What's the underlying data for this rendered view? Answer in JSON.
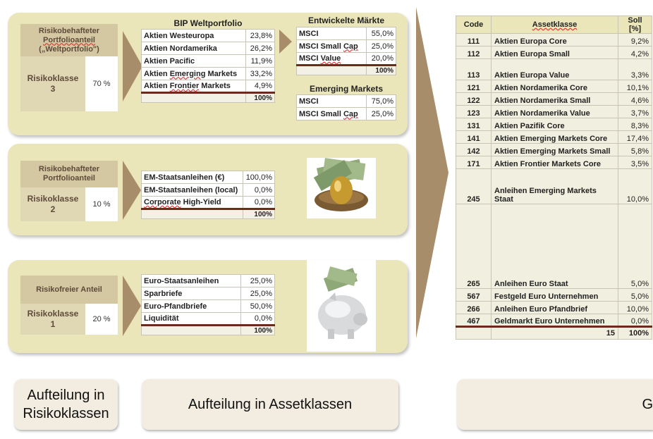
{
  "panel1": {
    "rk_head": [
      "Risikobehafteter",
      "Portfolioanteil",
      "(„Weltportfolio\")"
    ],
    "rk_label": [
      "Risikoklasse",
      "3"
    ],
    "rk_pct": "70 %",
    "bip_title": "BIP Weltportfolio",
    "bip_rows": [
      {
        "label": "Aktien Westeuropa",
        "value": "23,8%"
      },
      {
        "label": "Aktien Nordamerika",
        "value": "26,2%"
      },
      {
        "label": "Aktien Pacific",
        "value": "11,9%"
      },
      {
        "label": "Aktien Emerging Markets",
        "value": "33,2%"
      },
      {
        "label": "Aktien Frontier Markets",
        "value": "4,9%"
      }
    ],
    "bip_total": "100%",
    "em_title": "Entwickelte Märkte",
    "em_rows": [
      {
        "label": "MSCI",
        "value": "55,0%"
      },
      {
        "label": "MSCI Small Cap",
        "value": "25,0%"
      },
      {
        "label": "MSCI Value",
        "value": "20,0%"
      }
    ],
    "em_total": "100%",
    "emm_title": "Emerging Markets",
    "emm_rows": [
      {
        "label": "MSCI",
        "value": "75,0%"
      },
      {
        "label": "MSCI Small Cap",
        "value": "25,0%"
      }
    ]
  },
  "panel2": {
    "rk_head": [
      "Risikobehafteter",
      "Portfolioanteil"
    ],
    "rk_label": [
      "Risikoklasse",
      "2"
    ],
    "rk_pct": "10 %",
    "rows": [
      {
        "label": "EM-Staatsanleihen (€)",
        "value": "100,0%"
      },
      {
        "label": "EM-Staatsanleihen (local)",
        "value": "0,0%"
      },
      {
        "label": "Corporate High-Yield",
        "value": "0,0%"
      }
    ],
    "total": "100%"
  },
  "panel3": {
    "rk_head": [
      "Risikofreier Anteil"
    ],
    "rk_label": [
      "Risikoklasse",
      "1"
    ],
    "rk_pct": "20 %",
    "rows": [
      {
        "label": "Euro-Staatsanleihen",
        "value": "25,0%"
      },
      {
        "label": "Sparbriefe",
        "value": "25,0%"
      },
      {
        "label": "Euro-Pfandbriefe",
        "value": "50,0%"
      },
      {
        "label": "Liquidität",
        "value": "0,0%"
      }
    ],
    "total": "100%"
  },
  "right_table": {
    "headers": [
      "Code",
      "Assetklasse",
      "Soll [%]"
    ],
    "rows": [
      {
        "code": "111",
        "name": "Aktien Europa Core",
        "soll": "9,2%"
      },
      {
        "code": "112",
        "name": "Aktien Europa Small",
        "soll": "4,2%"
      },
      {
        "code": "113",
        "name": "Aktien Europa Value",
        "soll": "3,3%"
      },
      {
        "code": "121",
        "name": "Aktien Nordamerika Core",
        "soll": "10,1%"
      },
      {
        "code": "122",
        "name": "Aktien Nordamerika Small",
        "soll": "4,6%"
      },
      {
        "code": "123",
        "name": "Aktien Nordamerika Value",
        "soll": "3,7%"
      },
      {
        "code": "131",
        "name": "Aktien Pazifik Core",
        "soll": "8,3%"
      },
      {
        "code": "141",
        "name": "Aktien Emerging Markets Core",
        "soll": "17,4%"
      },
      {
        "code": "142",
        "name": "Aktien Emerging Markets Small",
        "soll": "5,8%"
      },
      {
        "code": "171",
        "name": "Aktien Frontier Markets Core",
        "soll": "3,5%"
      },
      {
        "code": "245",
        "name": "Anleihen Emerging Markets Staat",
        "soll": "10,0%"
      },
      {
        "code": "265",
        "name": "Anleihen Euro Staat",
        "soll": "5,0%"
      },
      {
        "code": "567",
        "name": "Festgeld Euro Unternehmen",
        "soll": "5,0%"
      },
      {
        "code": "266",
        "name": "Anleihen Euro Pfandbrief",
        "soll": "10,0%"
      },
      {
        "code": "467",
        "name": "Geldmarkt Euro Unternehmen",
        "soll": "0,0%"
      }
    ],
    "total_count": "15",
    "total_pct": "100%"
  },
  "buttons": {
    "risikoklassen": [
      "Aufteilung in",
      "Risikoklassen"
    ],
    "assetklassen": "Aufteilung in Assetklassen",
    "third": "G"
  },
  "colors": {
    "panel_bg": "#ebe6b9",
    "header_bg": "#d4c8a2",
    "arrow": "#a88d6a",
    "separator": "#6b2a1a"
  }
}
